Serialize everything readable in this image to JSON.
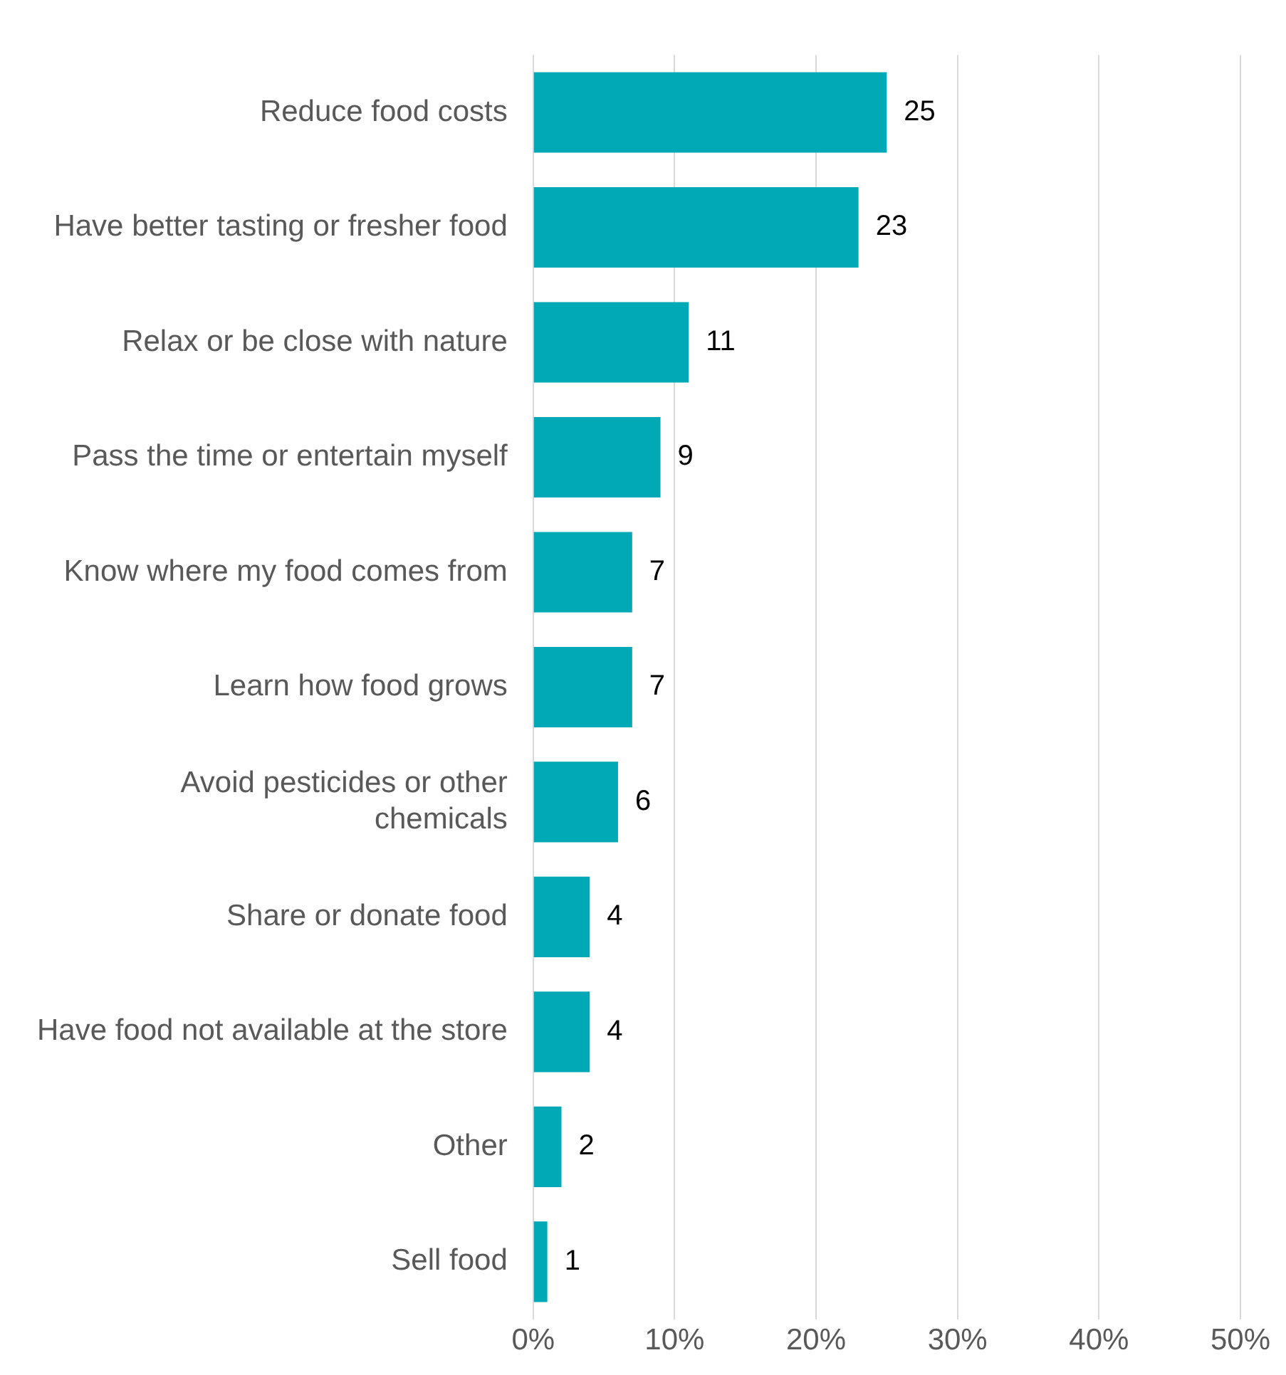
{
  "chart_data": {
    "type": "bar",
    "orientation": "horizontal",
    "categories": [
      "Reduce food costs",
      "Have better tasting or fresher food",
      "Relax or be close with nature",
      "Pass the time or entertain myself",
      "Know where my food comes from",
      "Learn how food grows",
      "Avoid pesticides or other\nchemicals",
      "Share or donate food",
      "Have food not available at the store",
      "Other",
      "Sell food"
    ],
    "values": [
      25,
      23,
      11,
      9,
      7,
      7,
      6,
      4,
      4,
      2,
      1
    ],
    "color": "#00a9b5",
    "xlim": [
      0,
      50
    ],
    "xticks": [
      {
        "value": 0,
        "label": "0%"
      },
      {
        "value": 10,
        "label": "10%"
      },
      {
        "value": 20,
        "label": "20%"
      },
      {
        "value": 30,
        "label": "30%"
      },
      {
        "value": 40,
        "label": "40%"
      },
      {
        "value": 50,
        "label": "50%"
      }
    ],
    "grid": "x",
    "legend": false,
    "data_labels": true
  }
}
